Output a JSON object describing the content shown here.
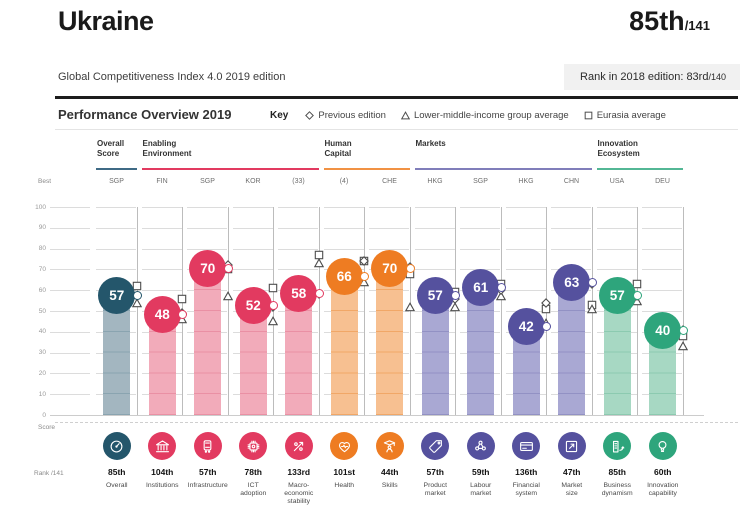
{
  "header": {
    "country": "Ukraine",
    "rank": "85th",
    "rank_total": "/141"
  },
  "edition": {
    "subtitle": "Global Competitiveness Index 4.0 2019 edition"
  },
  "rank_2018": {
    "label": "Rank in 2018 edition: 83rd",
    "total": "/140"
  },
  "overview": {
    "title": "Performance Overview 2019",
    "key_label": "Key",
    "legend": [
      {
        "shape": "diamond",
        "label": "Previous edition"
      },
      {
        "shape": "triangle",
        "label": "Lower-middle-income group average"
      },
      {
        "shape": "square",
        "label": "Eurasia average"
      }
    ]
  },
  "labels": {
    "best": "Best",
    "score": "Score",
    "rank": "Rank /141"
  },
  "palette": {
    "overall": {
      "circle": "#24566b",
      "bar": "#a3b6c0",
      "hatch": "#8aa4b0",
      "line": "#3f6a85"
    },
    "enabling": {
      "circle": "#e23a60",
      "bar": "#f2abba",
      "hatch": "#ea90a4",
      "line": "#e23a60"
    },
    "human": {
      "circle": "#ee7c22",
      "bar": "#f7c091",
      "hatch": "#f1a767",
      "line": "#f19244"
    },
    "markets": {
      "circle": "#55519e",
      "bar": "#a9a8d3",
      "hatch": "#9291c4",
      "line": "#807eba"
    },
    "innovation": {
      "circle": "#2ea57c",
      "bar": "#a7d8c3",
      "hatch": "#8ccab0",
      "line": "#53b795"
    }
  },
  "sections": [
    {
      "name": "Overall\nScore",
      "group": "overall",
      "cols": 1
    },
    {
      "name": "Enabling\nEnvironment",
      "group": "enabling",
      "cols": 4
    },
    {
      "name": "Human\nCapital",
      "group": "human",
      "cols": 2
    },
    {
      "name": "Markets",
      "group": "markets",
      "cols": 4
    },
    {
      "name": "Innovation\nEcosystem",
      "group": "innovation",
      "cols": 2
    }
  ],
  "chart_data": {
    "type": "bar",
    "ylim": [
      0,
      100
    ],
    "y_ticks": [
      100,
      90,
      80,
      70,
      60,
      50,
      40,
      30,
      20,
      10,
      0
    ],
    "legend_position": "top-right",
    "columns": [
      {
        "pillar": "Overall",
        "label": "Overall",
        "best": "SGP",
        "score": 57,
        "rank": "85th",
        "previous_edition": 57,
        "income_group_avg": 54,
        "eurasia_avg": 62,
        "group": "overall",
        "icon": "gauge-icon"
      },
      {
        "pillar": "Institutions",
        "label": "Institutions",
        "best": "FIN",
        "score": 48,
        "rank": "104th",
        "previous_edition": 49,
        "income_group_avg": 46,
        "eurasia_avg": 56,
        "group": "enabling",
        "icon": "bank-icon"
      },
      {
        "pillar": "Infrastructure",
        "label": "Infrastructure",
        "best": "SGP",
        "score": 70,
        "rank": "57th",
        "previous_edition": 72,
        "income_group_avg": 57,
        "eurasia_avg": 70,
        "group": "enabling",
        "icon": "train-icon"
      },
      {
        "pillar": "ICT adoption",
        "label": "ICT\nadoption",
        "best": "KOR",
        "score": 52,
        "rank": "78th",
        "previous_edition": 52,
        "income_group_avg": 45,
        "eurasia_avg": 61,
        "group": "enabling",
        "icon": "chip-icon"
      },
      {
        "pillar": "Macro-economic stability",
        "label": "Macro-\neconomic\nstability",
        "best": "(33)",
        "score": 58,
        "rank": "133rd",
        "previous_edition": 58,
        "income_group_avg": 73,
        "eurasia_avg": 77,
        "group": "enabling",
        "icon": "percent-arrow-icon"
      },
      {
        "pillar": "Health",
        "label": "Health",
        "best": "(4)",
        "score": 66,
        "rank": "101st",
        "previous_edition": 74,
        "income_group_avg": 64,
        "eurasia_avg": 74,
        "group": "human",
        "icon": "heart-pulse-icon"
      },
      {
        "pillar": "Skills",
        "label": "Skills",
        "best": "CHE",
        "score": 70,
        "rank": "44th",
        "previous_edition": 71,
        "income_group_avg": 52,
        "eurasia_avg": 68,
        "group": "human",
        "icon": "graduate-icon"
      },
      {
        "pillar": "Product market",
        "label": "Product\nmarket",
        "best": "HKG",
        "score": 57,
        "rank": "57th",
        "previous_edition": 56,
        "income_group_avg": 52,
        "eurasia_avg": 59,
        "group": "markets",
        "icon": "price-tag-icon"
      },
      {
        "pillar": "Labour market",
        "label": "Labour\nmarket",
        "best": "SGP",
        "score": 61,
        "rank": "59th",
        "previous_edition": 60,
        "income_group_avg": 57,
        "eurasia_avg": 63,
        "group": "markets",
        "icon": "people-network-icon"
      },
      {
        "pillar": "Financial system",
        "label": "Financial\nsystem",
        "best": "HKG",
        "score": 42,
        "rank": "136th",
        "previous_edition": 54,
        "income_group_avg": 44,
        "eurasia_avg": 51,
        "group": "markets",
        "icon": "credit-card-icon"
      },
      {
        "pillar": "Market size",
        "label": "Market\nsize",
        "best": "CHN",
        "score": 63,
        "rank": "47th",
        "previous_edition": 63,
        "income_group_avg": 51,
        "eurasia_avg": 53,
        "group": "markets",
        "icon": "expand-arrow-icon"
      },
      {
        "pillar": "Business dynamism",
        "label": "Business\ndynamism",
        "best": "USA",
        "score": 57,
        "rank": "85th",
        "previous_edition": 57,
        "income_group_avg": 55,
        "eurasia_avg": 63,
        "group": "innovation",
        "icon": "building-arrow-icon"
      },
      {
        "pillar": "Innovation capability",
        "label": "Innovation\ncapability",
        "best": "DEU",
        "score": 40,
        "rank": "60th",
        "previous_edition": 41,
        "income_group_avg": 33,
        "eurasia_avg": 38,
        "group": "innovation",
        "icon": "lightbulb-icon"
      }
    ]
  }
}
